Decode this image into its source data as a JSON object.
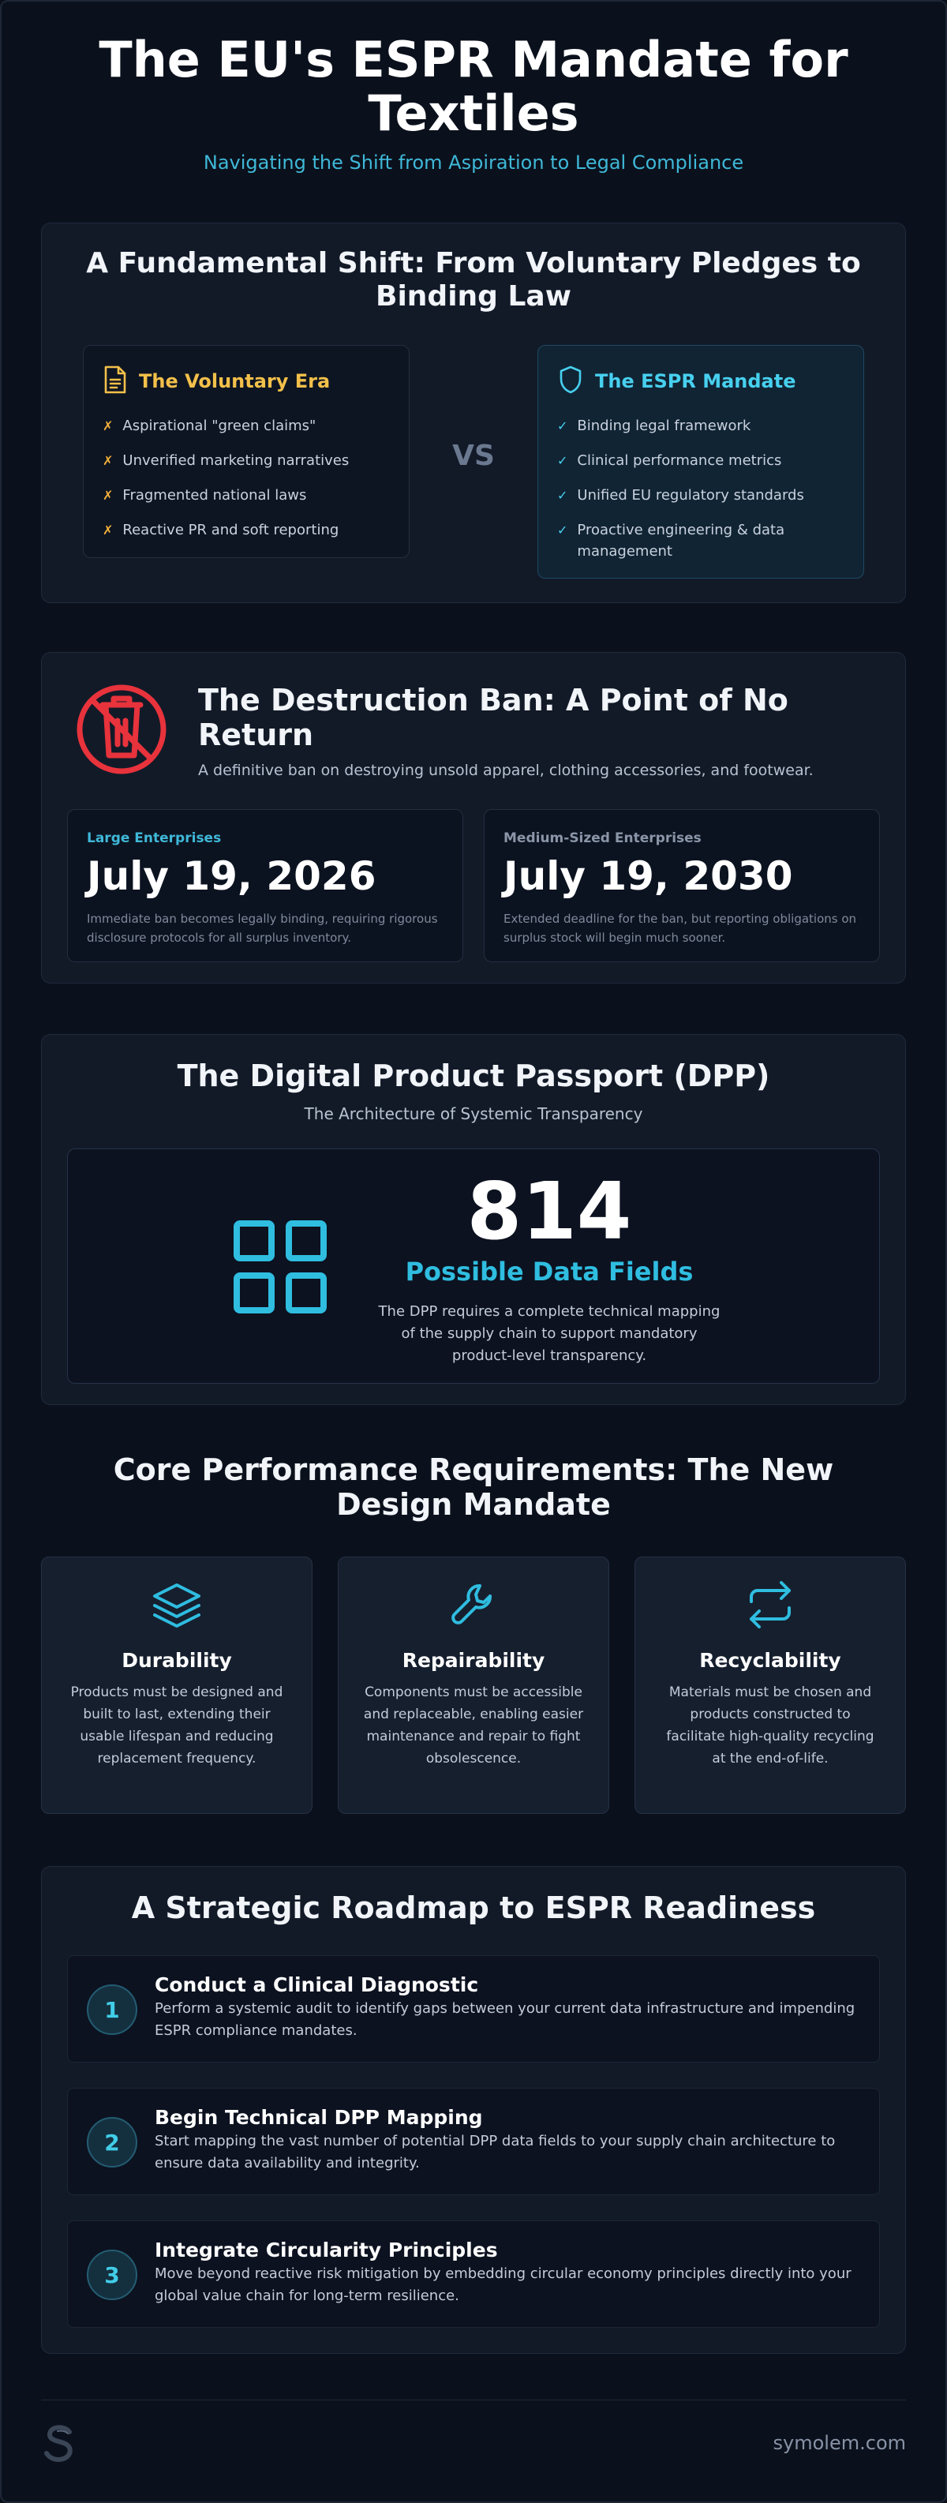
{
  "header": {
    "title": "The EU's ESPR Mandate for Textiles",
    "subtitle": "Navigating the Shift from Aspiration to Legal Compliance"
  },
  "shift": {
    "title": "A Fundamental Shift: From Voluntary Pledges to Binding Law",
    "vs": "VS",
    "voluntary": {
      "title": "The Voluntary Era",
      "icon": "document-icon",
      "items": [
        "Aspirational \"green claims\"",
        "Unverified marketing narratives",
        "Fragmented national laws",
        "Reactive PR and soft reporting"
      ]
    },
    "espr": {
      "title": "The ESPR Mandate",
      "icon": "shield-icon",
      "items": [
        "Binding legal framework",
        "Clinical performance metrics",
        "Unified EU regulatory standards",
        "Proactive engineering & data management"
      ]
    }
  },
  "ban": {
    "title": "The Destruction Ban: A Point of No Return",
    "subtitle": "A definitive ban on destroying unsold apparel, clothing accessories, and footwear.",
    "icon": "no-destruction-icon",
    "large": {
      "label": "Large Enterprises",
      "date": "July 19, 2026",
      "desc": "Immediate ban becomes legally binding, requiring rigorous disclosure protocols for all surplus inventory.",
      "color": "#3fb8d8"
    },
    "medium": {
      "label": "Medium-Sized Enterprises",
      "date": "July 19, 2030",
      "desc": "Extended deadline for the ban, but reporting obligations on surplus stock will begin much sooner.",
      "color": "#8a96a8"
    }
  },
  "dpp": {
    "title": "The Digital Product Passport (DPP)",
    "subtitle": "The Architecture of Systemic Transparency",
    "number": "814",
    "number_label": "Possible Data Fields",
    "desc": "The DPP requires a complete technical mapping of the supply chain to support mandatory product-level transparency.",
    "icon": "grid-icon"
  },
  "core": {
    "title": "Core Performance Requirements: The New Design Mandate",
    "items": [
      {
        "title": "Durability",
        "icon": "layers-icon",
        "desc": "Products must be designed and built to last, extending their usable lifespan and reducing replacement frequency."
      },
      {
        "title": "Repairability",
        "icon": "wrench-icon",
        "desc": "Components must be accessible and replaceable, enabling easier maintenance and repair to fight obsolescence."
      },
      {
        "title": "Recyclability",
        "icon": "recycle-icon",
        "desc": "Materials must be chosen and products constructed to facilitate high-quality recycling at the end-of-life."
      }
    ]
  },
  "roadmap": {
    "title": "A Strategic Roadmap to ESPR Readiness",
    "steps": [
      {
        "n": "1",
        "title": "Conduct a Clinical Diagnostic",
        "desc": "Perform a systemic audit to identify gaps between your current data infrastructure and impending ESPR compliance mandates."
      },
      {
        "n": "2",
        "title": "Begin Technical DPP Mapping",
        "desc": "Start mapping the vast number of potential DPP data fields to your supply chain architecture to ensure data availability and integrity."
      },
      {
        "n": "3",
        "title": "Integrate Circularity Principles",
        "desc": "Move beyond reactive risk mitigation by embedding circular economy principles directly into your global value chain for long-term resilience."
      }
    ]
  },
  "footer": {
    "site": "symolem.com",
    "logo_icon": "s-logo-icon"
  }
}
